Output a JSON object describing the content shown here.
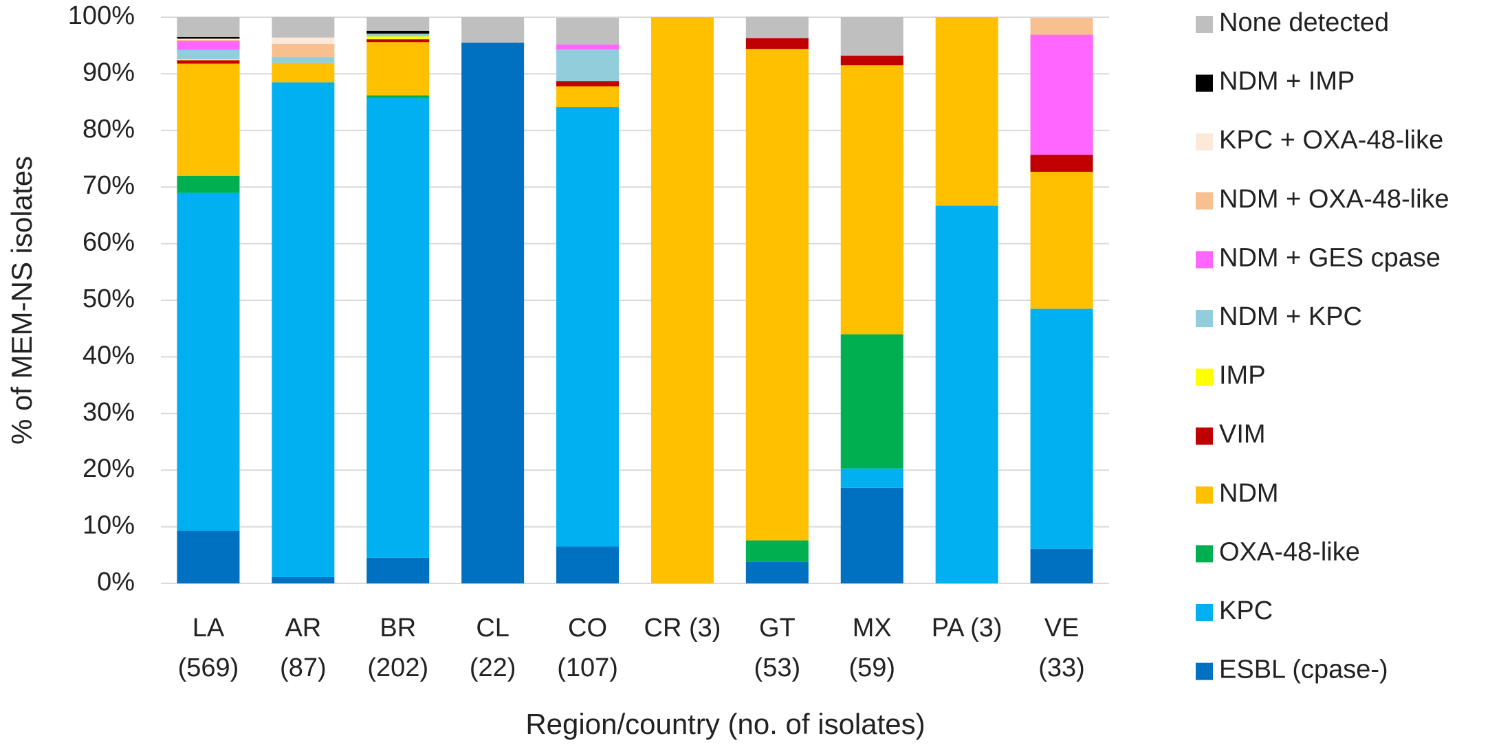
{
  "chart_data": {
    "type": "stacked_bar",
    "x_label": "Region/country (no. of isolates)",
    "y_label": "% of MEM-NS isolates",
    "categories": [
      [
        "LA",
        "(569)"
      ],
      [
        "AR",
        "(87)"
      ],
      [
        "BR",
        "(202)"
      ],
      [
        "CL",
        "(22)"
      ],
      [
        "CO",
        "(107)"
      ],
      [
        "CR (3)"
      ],
      [
        "GT",
        "(53)"
      ],
      [
        "MX",
        "(59)"
      ],
      [
        "PA (3)"
      ],
      [
        "VE",
        "(33)"
      ]
    ],
    "ylim": [
      0,
      100
    ],
    "yticks": [
      {
        "value": 0,
        "label": "0%"
      },
      {
        "value": 10,
        "label": "10%"
      },
      {
        "value": 20,
        "label": "20%"
      },
      {
        "value": 30,
        "label": "30%"
      },
      {
        "value": 40,
        "label": "40%"
      },
      {
        "value": 50,
        "label": "50%"
      },
      {
        "value": 60,
        "label": "60%"
      },
      {
        "value": 70,
        "label": "70%"
      },
      {
        "value": 80,
        "label": "80%"
      },
      {
        "value": 90,
        "label": "90%"
      },
      {
        "value": 100,
        "label": "100%"
      }
    ],
    "grid": true,
    "legend": "right",
    "series": [
      {
        "name": "ESBL (cpase-)",
        "color": "#0070c0",
        "values": [
          9.3,
          1.1,
          4.5,
          95.5,
          6.5,
          0,
          3.8,
          16.9,
          0,
          6.1
        ]
      },
      {
        "name": "KPC",
        "color": "#00b0f0",
        "values": [
          59.7,
          87.4,
          81.2,
          0,
          77.6,
          0,
          0,
          3.4,
          66.7,
          42.4
        ]
      },
      {
        "name": "OXA-48-like",
        "color": "#00b050",
        "values": [
          3.0,
          0,
          0.5,
          0,
          0,
          0,
          3.8,
          23.7,
          0,
          0
        ]
      },
      {
        "name": "NDM",
        "color": "#ffc000",
        "values": [
          19.8,
          3.4,
          9.4,
          0,
          3.7,
          100,
          86.8,
          47.5,
          33.3,
          24.2
        ]
      },
      {
        "name": "VIM",
        "color": "#c00000",
        "values": [
          0.6,
          0,
          0.5,
          0,
          0.9,
          0,
          1.9,
          1.7,
          0,
          3.0
        ]
      },
      {
        "name": "IMP",
        "color": "#ffff00",
        "values": [
          0.2,
          0,
          0.5,
          0,
          0,
          0,
          0,
          0,
          0,
          0
        ]
      },
      {
        "name": "NDM + KPC",
        "color": "#92cddc",
        "values": [
          1.6,
          1.1,
          0.5,
          0,
          5.6,
          0,
          0,
          0,
          0,
          0
        ]
      },
      {
        "name": "NDM + GES cpase",
        "color": "#ff66ff",
        "values": [
          1.6,
          0,
          0,
          0,
          0.9,
          0,
          0,
          0,
          0,
          21.2
        ]
      },
      {
        "name": "NDM + OXA-48-like",
        "color": "#f8bf8f",
        "values": [
          0.2,
          2.3,
          0,
          0,
          0,
          0,
          0,
          0,
          0,
          3.0
        ]
      },
      {
        "name": "KPC + OXA-48-like",
        "color": "#fde9d9",
        "values": [
          0.2,
          1.1,
          0,
          0,
          0,
          0,
          0,
          0,
          0,
          0
        ]
      },
      {
        "name": "NDM + IMP",
        "color": "#000000",
        "values": [
          0.3,
          0,
          0.5,
          0,
          0,
          0,
          0,
          0,
          0,
          0
        ]
      },
      {
        "name": "None detected",
        "color": "#bfbfbf",
        "values": [
          3.5,
          3.6,
          2.4,
          4.5,
          4.7,
          0,
          3.8,
          6.8,
          0,
          0
        ]
      }
    ]
  }
}
